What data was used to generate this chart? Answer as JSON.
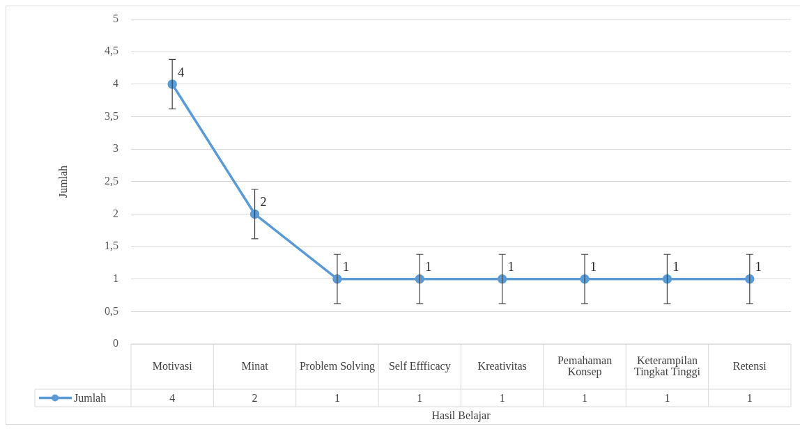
{
  "chart_data": {
    "type": "line",
    "xlabel": "Hasil Belajar",
    "ylabel": "Jumlah",
    "categories": [
      "Motivasi",
      "Minat",
      "Problem Solving",
      "Self Effficacy",
      "Kreativitas",
      "Pemahaman Konsep",
      "Keterampilan Tingkat Tinggi",
      "Retensi"
    ],
    "series": [
      {
        "name": "Jumlah",
        "color": "#5b9bd5",
        "values": [
          4,
          2,
          1,
          1,
          1,
          1,
          1,
          1
        ],
        "errors": [
          0.38,
          0.38,
          0.38,
          0.38,
          0.38,
          0.38,
          0.38,
          0.38
        ],
        "value_labels": [
          "4",
          "2",
          "1",
          "1",
          "1",
          "1",
          "1",
          "1"
        ]
      }
    ],
    "annotations": [
      {
        "text": "4",
        "x": "Motivasi",
        "y": 4
      },
      {
        "text": "2",
        "x": "Minat",
        "y": 2
      },
      {
        "text": "1",
        "x": "Problem Solving",
        "y": 1
      },
      {
        "text": "1",
        "x": "Self Effficacy",
        "y": 1
      },
      {
        "text": "1",
        "x": "Kreativitas",
        "y": 1
      },
      {
        "text": "1",
        "x": "Pemahaman Konsep",
        "y": 1
      },
      {
        "text": "1",
        "x": "Keterampilan Tingkat Tinggi",
        "y": 1
      },
      {
        "text": "1",
        "x": "Retensi",
        "y": 1
      }
    ],
    "ylim": [
      0,
      5
    ],
    "yticks": [
      {
        "value": 0,
        "label": "0"
      },
      {
        "value": 0.5,
        "label": "0,5"
      },
      {
        "value": 1,
        "label": "1"
      },
      {
        "value": 1.5,
        "label": "1,5"
      },
      {
        "value": 2,
        "label": "2"
      },
      {
        "value": 2.5,
        "label": "2,5"
      },
      {
        "value": 3,
        "label": "3"
      },
      {
        "value": 3.5,
        "label": "3,5"
      },
      {
        "value": 4,
        "label": "4"
      },
      {
        "value": 4.5,
        "label": "4,5"
      },
      {
        "value": 5,
        "label": "5"
      }
    ],
    "grid": "y",
    "marker": "circle",
    "legend": "bottom left"
  }
}
